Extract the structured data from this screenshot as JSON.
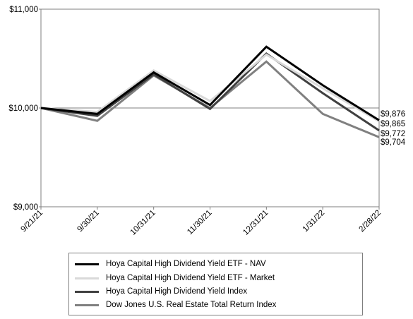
{
  "chart_data": {
    "type": "line",
    "x": [
      "9/21/21",
      "9/30/21",
      "10/31/21",
      "11/30/21",
      "12/31/21",
      "1/31/22",
      "2/28/22"
    ],
    "yticks": [
      "$11,000",
      "$10,000",
      "$9,000"
    ],
    "ylim": [
      9000,
      11000
    ],
    "grid": "horizontal at $10,000",
    "legend_position": "bottom",
    "series": [
      {
        "name": "Hoya Capital High Dividend Yield ETF - NAV",
        "color": "#000000",
        "values": [
          10000,
          9940,
          10360,
          10030,
          10620,
          10230,
          9876
        ],
        "end_label": "$9,876"
      },
      {
        "name": "Hoya Capital High Dividend Yield ETF - Market",
        "color": "#d9d9d9",
        "values": [
          10000,
          9960,
          10380,
          10070,
          10540,
          10200,
          9865
        ],
        "end_label": "$9,865"
      },
      {
        "name": "Hoya Capital High Dividend Yield Index",
        "color": "#404040",
        "values": [
          10000,
          9920,
          10340,
          9990,
          10550,
          10150,
          9772
        ],
        "end_label": "$9,772"
      },
      {
        "name": "Dow Jones U.S. Real Estate Total Return Index",
        "color": "#808080",
        "values": [
          10000,
          9870,
          10330,
          10000,
          10470,
          9940,
          9704
        ],
        "end_label": "$9,704"
      }
    ]
  }
}
